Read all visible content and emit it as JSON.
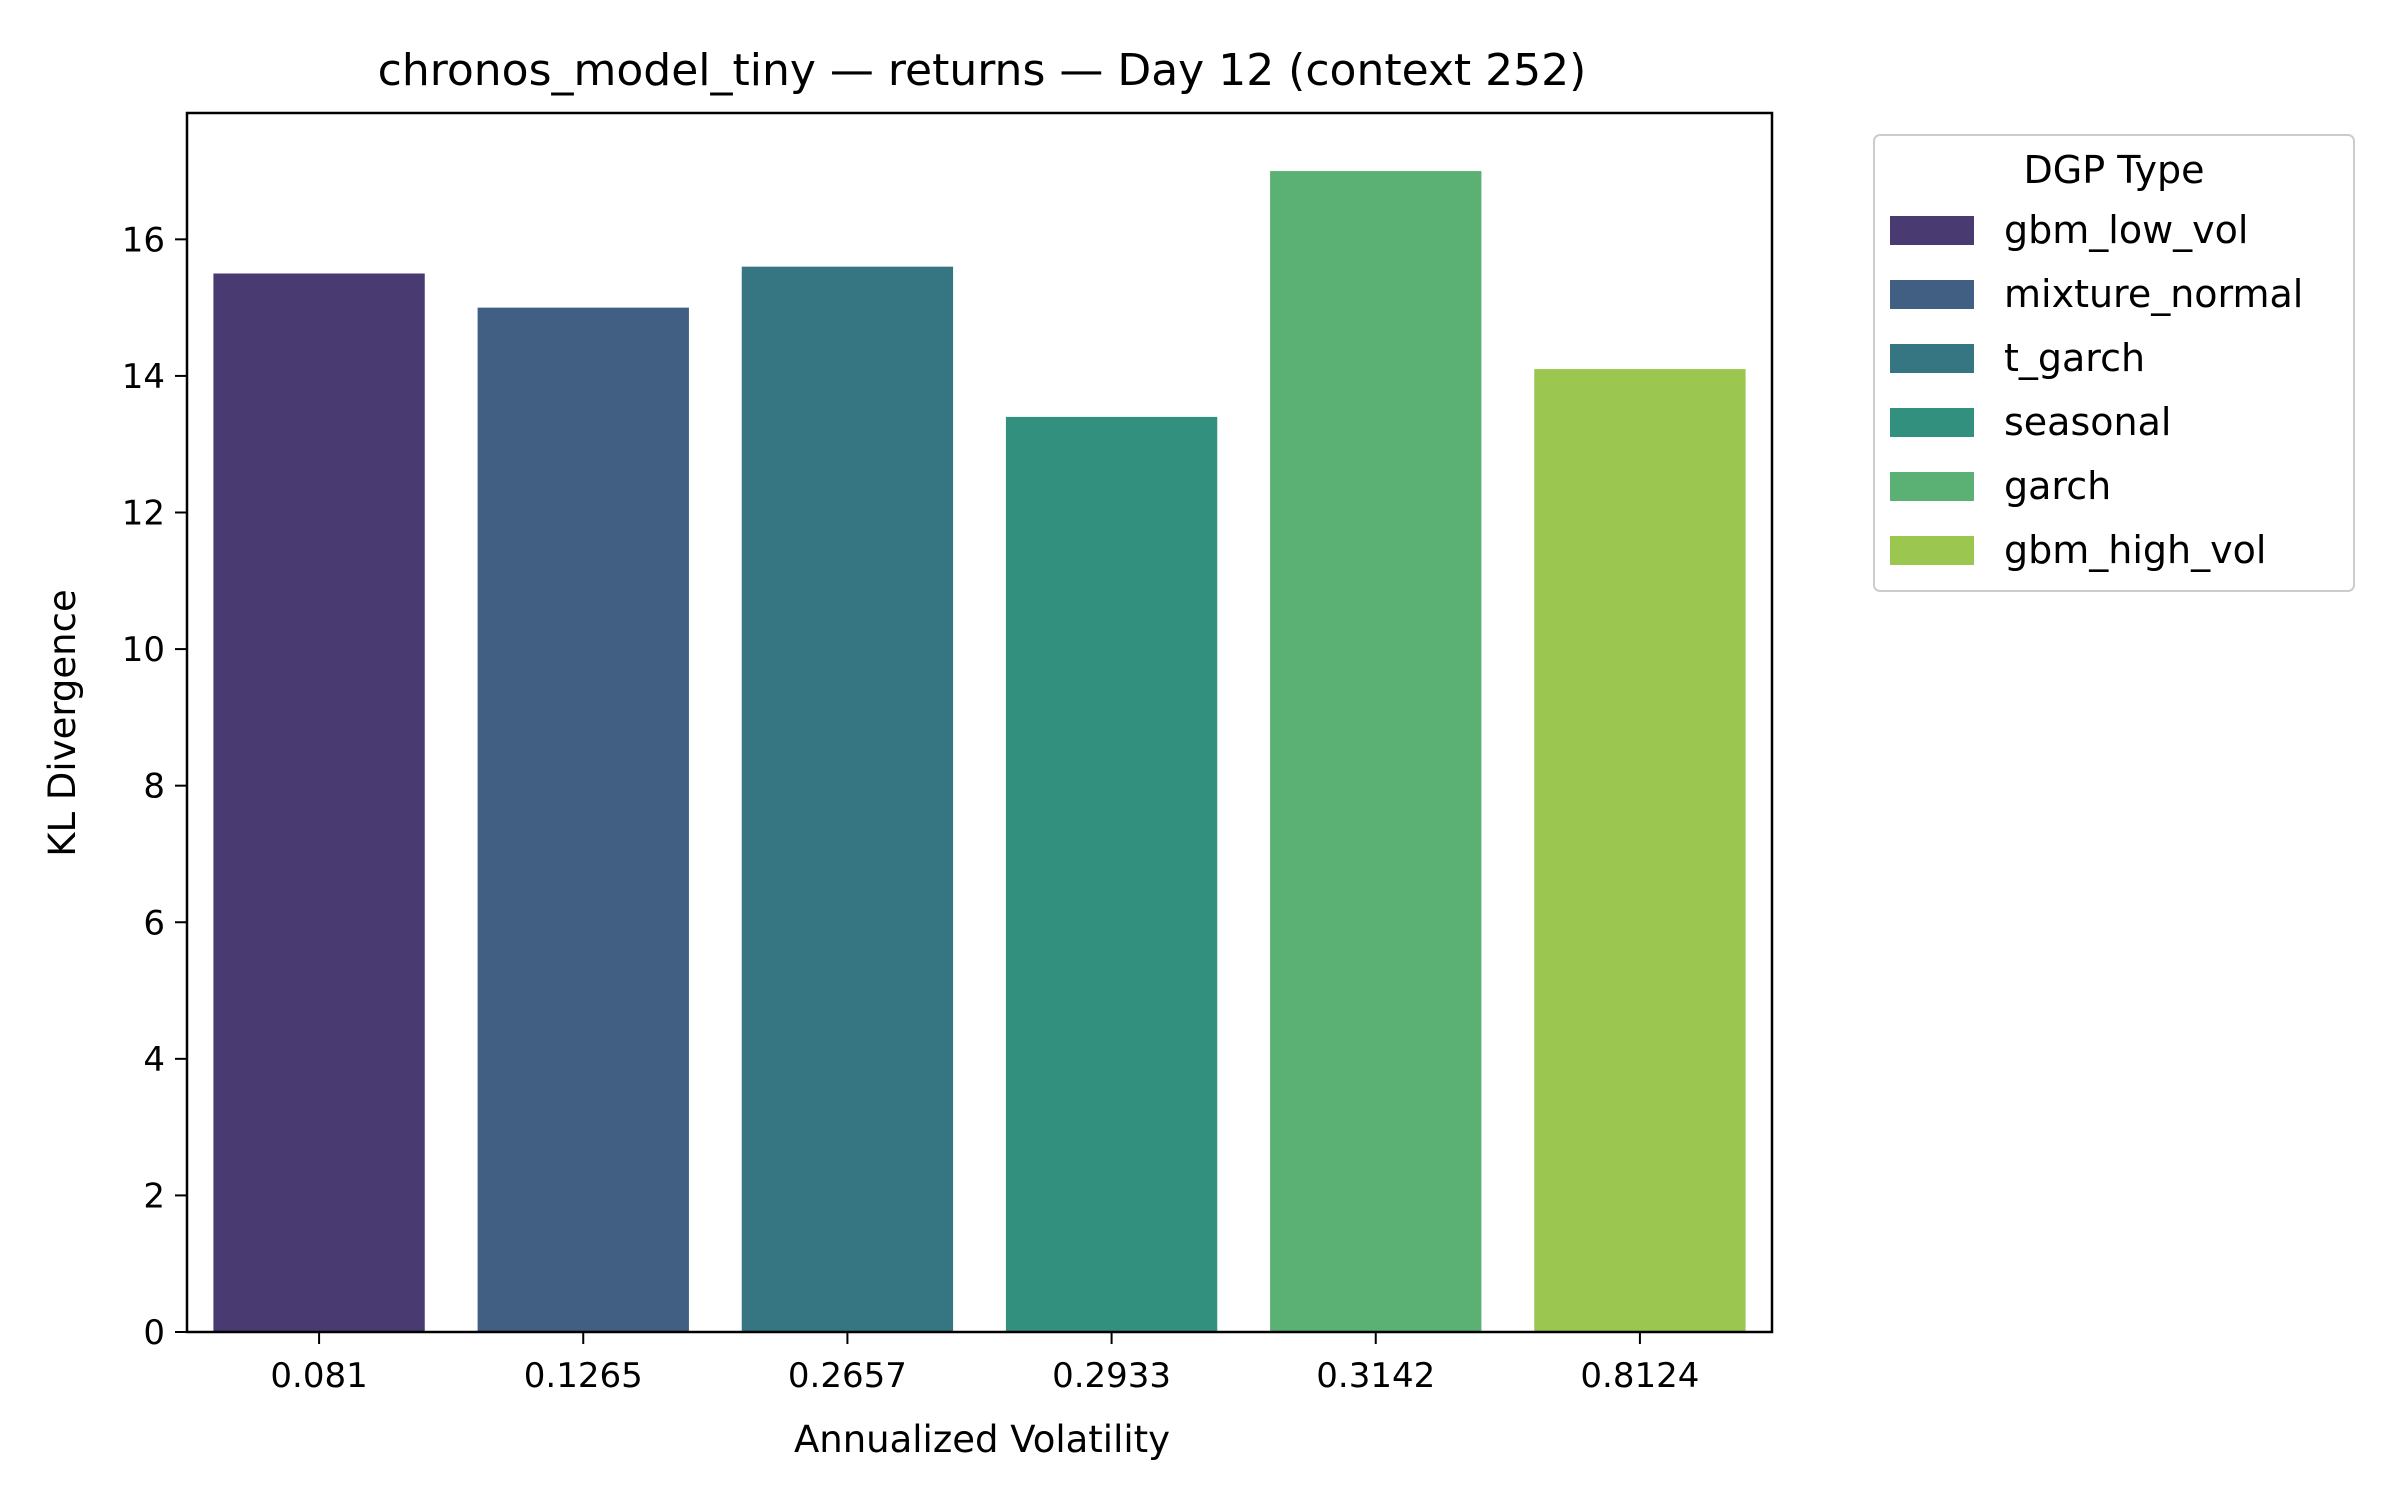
{
  "chart_data": {
    "type": "bar",
    "title": "chronos_model_tiny — returns — Day 12 (context 252)",
    "xlabel": "Annualized Volatility",
    "ylabel": "KL Divergence",
    "categories": [
      "0.081",
      "0.1265",
      "0.2657",
      "0.2933",
      "0.3142",
      "0.8124"
    ],
    "values": [
      15.5,
      15.0,
      15.6,
      13.4,
      17.0,
      14.1
    ],
    "series_names": [
      "gbm_low_vol",
      "mixture_normal",
      "t_garch",
      "seasonal",
      "garch",
      "gbm_high_vol"
    ],
    "colors": [
      "#4a3a72",
      "#415f82",
      "#357682",
      "#32907e",
      "#5bb173",
      "#9bc64f"
    ],
    "ylim": [
      0,
      17.85
    ],
    "yticks": [
      0,
      2,
      4,
      6,
      8,
      10,
      12,
      14,
      16
    ],
    "grid": false,
    "legend": {
      "title": "DGP Type",
      "placement": "outside-right-top",
      "entries": [
        "gbm_low_vol",
        "mixture_normal",
        "t_garch",
        "seasonal",
        "garch",
        "gbm_high_vol"
      ]
    }
  }
}
